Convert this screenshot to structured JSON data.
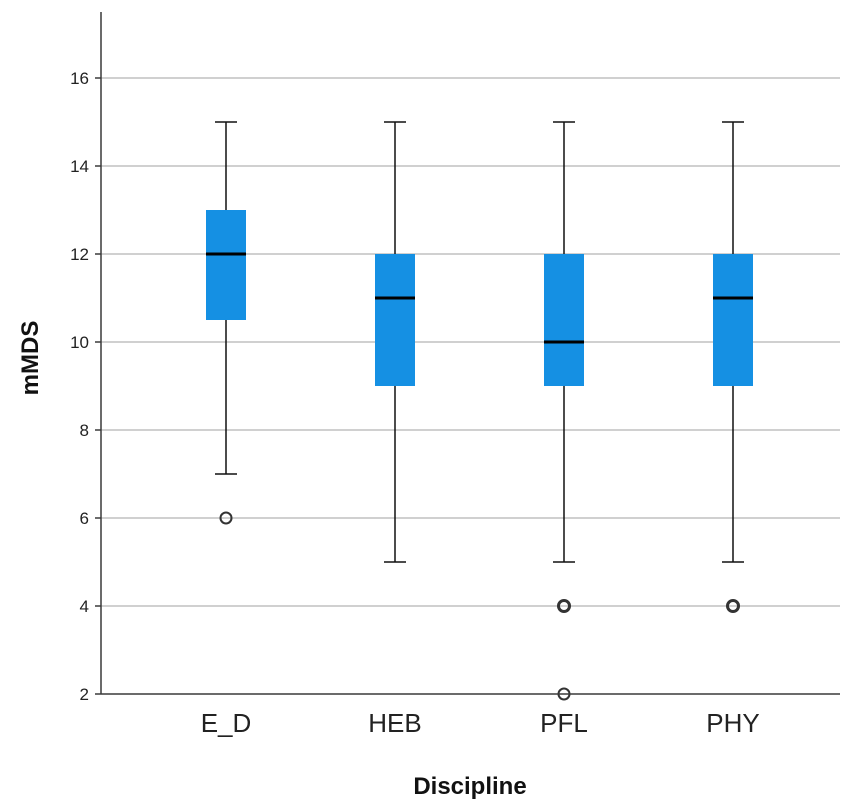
{
  "chart_data": {
    "type": "boxplot",
    "xlabel": "Discipline",
    "ylabel": "mMDS",
    "ylim": [
      2,
      17.5
    ],
    "yticks": [
      2,
      4,
      6,
      8,
      10,
      12,
      14,
      16
    ],
    "grid": true,
    "box_color": "#1590e3",
    "categories": [
      "E_D",
      "HEB",
      "PFL",
      "PHY"
    ],
    "boxes": [
      {
        "category": "E_D",
        "whisker_low": 7,
        "q1": 10.5,
        "median": 12,
        "q3": 13,
        "whisker_high": 15,
        "outliers": [
          6
        ]
      },
      {
        "category": "HEB",
        "whisker_low": 5,
        "q1": 9,
        "median": 11,
        "q3": 12,
        "whisker_high": 15,
        "outliers": []
      },
      {
        "category": "PFL",
        "whisker_low": 5,
        "q1": 9,
        "median": 10,
        "q3": 12,
        "whisker_high": 15,
        "outliers": [
          4,
          2
        ]
      },
      {
        "category": "PHY",
        "whisker_low": 5,
        "q1": 9,
        "median": 11,
        "q3": 12,
        "whisker_high": 15,
        "outliers": [
          4
        ]
      }
    ]
  }
}
